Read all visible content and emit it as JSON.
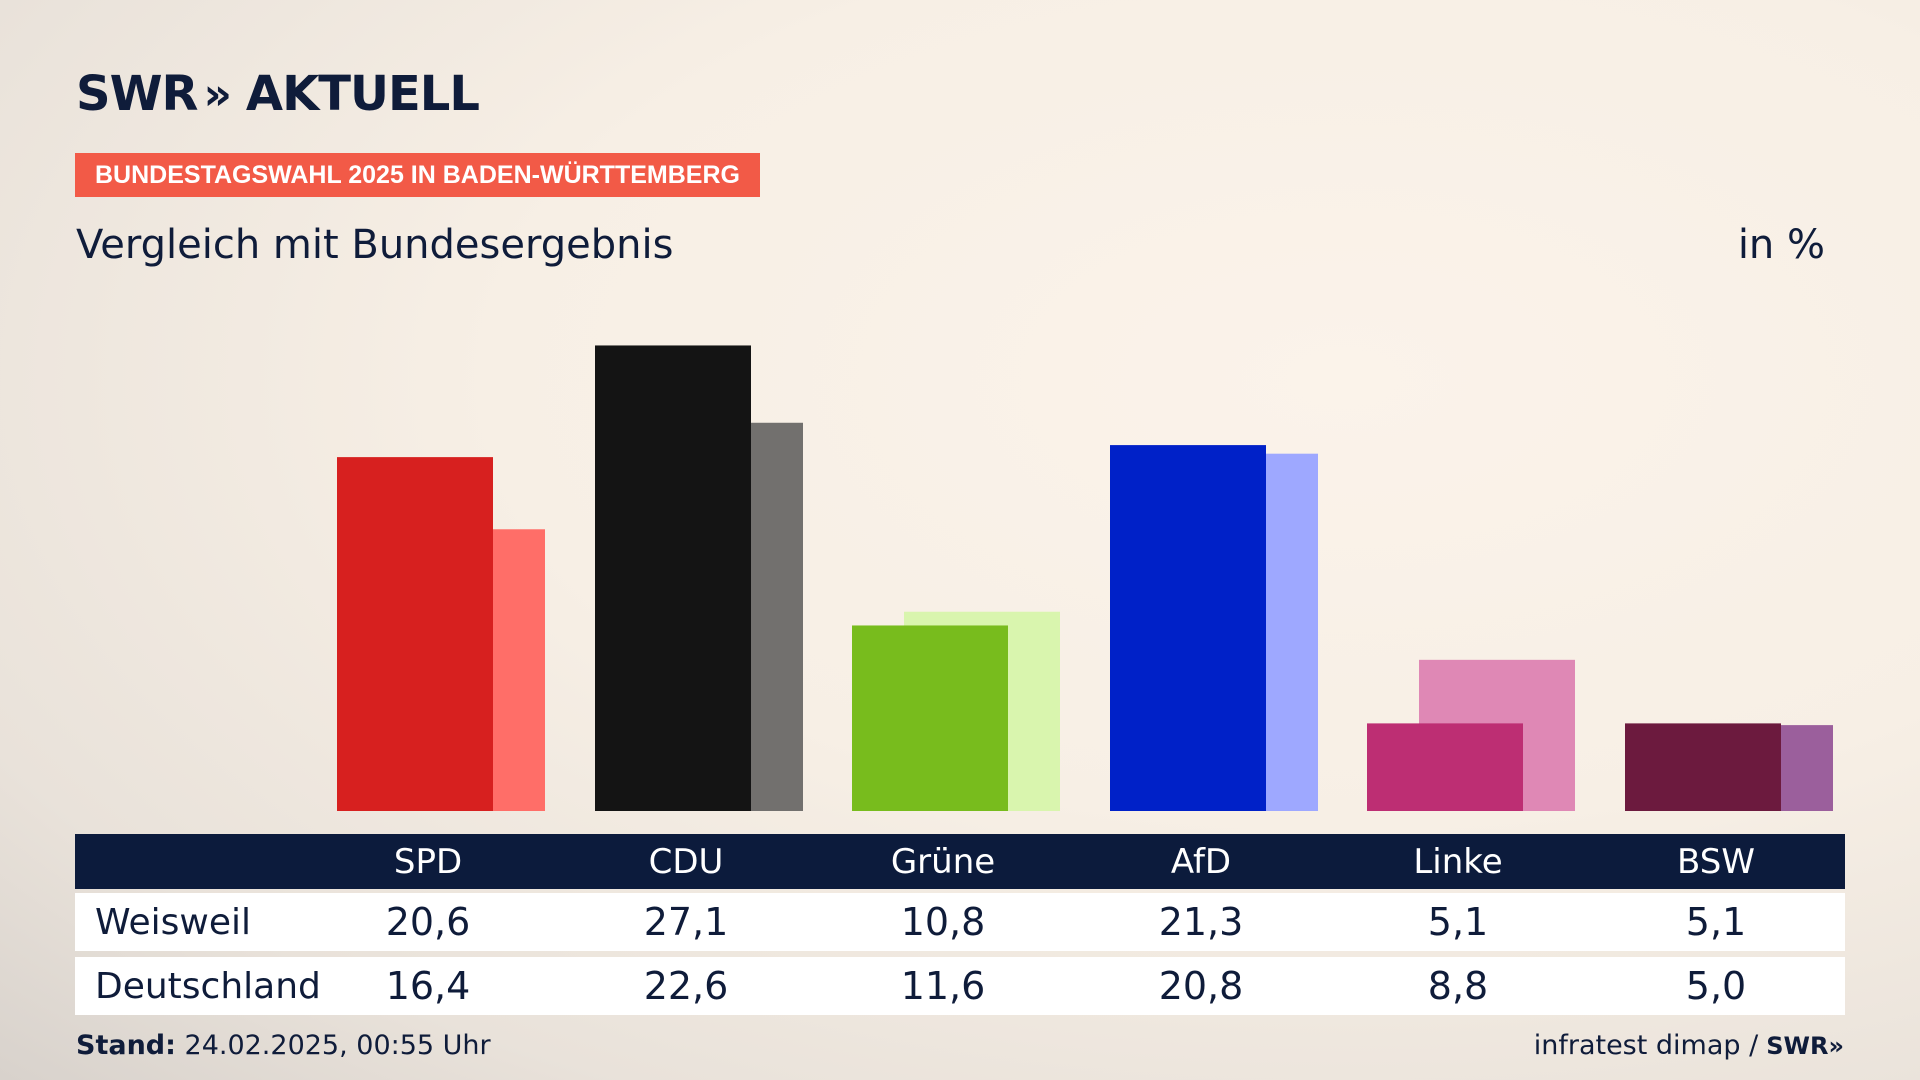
{
  "header": {
    "logo_text": "SWR",
    "logo_chevrons": "»",
    "logo_suffix": "AKTUELL",
    "banner": "BUNDESTAGSWAHL 2025 IN BADEN-WÜRTTEMBERG",
    "subtitle": "Vergleich mit Bundesergebnis",
    "unit": "in %"
  },
  "chart_data": {
    "type": "bar",
    "categories": [
      "SPD",
      "CDU",
      "Grüne",
      "AfD",
      "Linke",
      "BSW"
    ],
    "series": [
      {
        "name": "Weisweil",
        "values": [
          20.6,
          27.1,
          10.8,
          21.3,
          5.1,
          5.1
        ]
      },
      {
        "name": "Deutschland",
        "values": [
          16.4,
          22.6,
          11.6,
          20.8,
          8.8,
          5.0
        ]
      }
    ],
    "colors_primary": [
      "#d7201f",
      "#141414",
      "#78bc1d",
      "#0021c8",
      "#bd2e73",
      "#6c1a3e"
    ],
    "colors_secondary": [
      "#ff6e68",
      "#72706e",
      "#d9f5ae",
      "#9ea8ff",
      "#df88b5",
      "#9b5f9c"
    ],
    "ylim": [
      0,
      28
    ]
  },
  "table": {
    "rows": [
      {
        "label": "Weisweil",
        "values": [
          "20,6",
          "27,1",
          "10,8",
          "21,3",
          "5,1",
          "5,1"
        ]
      },
      {
        "label": "Deutschland",
        "values": [
          "16,4",
          "22,6",
          "11,6",
          "20,8",
          "8,8",
          "5,0"
        ]
      }
    ]
  },
  "footer": {
    "stand_label": "Stand:",
    "stand_value": "24.02.2025, 00:55 Uhr",
    "source": "infratest dimap /",
    "source_logo": "SWR",
    "source_logo_chevrons": "»"
  }
}
